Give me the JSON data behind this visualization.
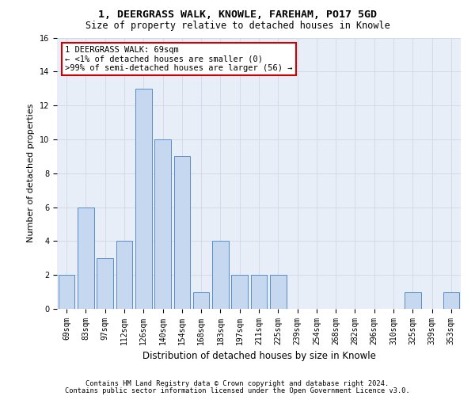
{
  "title1": "1, DEERGRASS WALK, KNOWLE, FAREHAM, PO17 5GD",
  "title2": "Size of property relative to detached houses in Knowle",
  "xlabel": "Distribution of detached houses by size in Knowle",
  "ylabel": "Number of detached properties",
  "categories": [
    "69sqm",
    "83sqm",
    "97sqm",
    "112sqm",
    "126sqm",
    "140sqm",
    "154sqm",
    "168sqm",
    "183sqm",
    "197sqm",
    "211sqm",
    "225sqm",
    "239sqm",
    "254sqm",
    "268sqm",
    "282sqm",
    "296sqm",
    "310sqm",
    "325sqm",
    "339sqm",
    "353sqm"
  ],
  "values": [
    2,
    6,
    3,
    4,
    13,
    10,
    9,
    1,
    4,
    2,
    2,
    2,
    0,
    0,
    0,
    0,
    0,
    0,
    1,
    0,
    1
  ],
  "bar_color_normal": "#c5d8f0",
  "bar_edgecolor": "#5b8cc8",
  "ylim": [
    0,
    16
  ],
  "yticks": [
    0,
    2,
    4,
    6,
    8,
    10,
    12,
    14,
    16
  ],
  "annotation_text": "1 DEERGRASS WALK: 69sqm\n← <1% of detached houses are smaller (0)\n>99% of semi-detached houses are larger (56) →",
  "annotation_box_color": "#ffffff",
  "annotation_box_edgecolor": "#cc0000",
  "footer1": "Contains HM Land Registry data © Crown copyright and database right 2024.",
  "footer2": "Contains public sector information licensed under the Open Government Licence v3.0.",
  "title1_fontsize": 9.5,
  "title2_fontsize": 8.5,
  "ylabel_fontsize": 8,
  "xlabel_fontsize": 8.5,
  "tick_fontsize": 7,
  "annot_fontsize": 7.5,
  "footer_fontsize": 6.2,
  "grid_color": "#d0d8e8",
  "bg_color": "#e8eef8"
}
